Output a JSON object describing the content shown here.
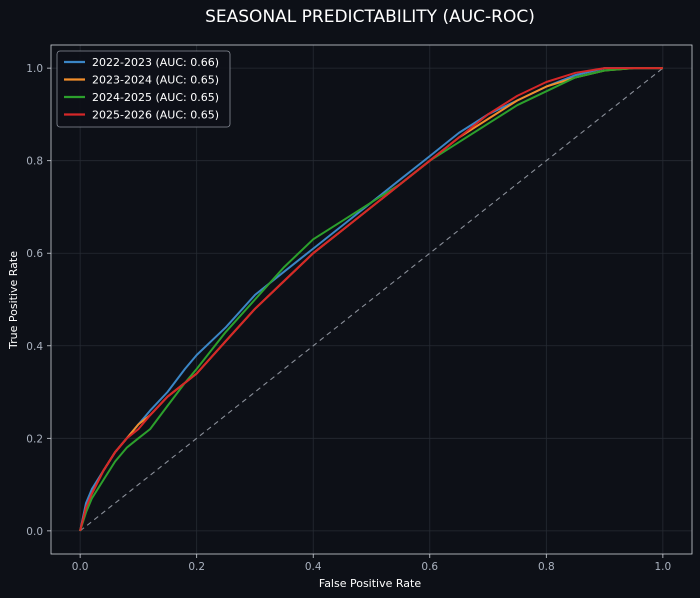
{
  "chart_data": {
    "type": "line",
    "title": "SEASONAL PREDICTABILITY (AUC-ROC)",
    "xlabel": "False Positive Rate",
    "ylabel": "True Positive Rate",
    "xlim": [
      -0.05,
      1.05
    ],
    "ylim": [
      -0.05,
      1.05
    ],
    "xticks": [
      "0.0",
      "0.2",
      "0.4",
      "0.6",
      "0.8",
      "1.0"
    ],
    "yticks": [
      "0.0",
      "0.2",
      "0.4",
      "0.6",
      "0.8",
      "1.0"
    ],
    "grid": true,
    "legend_position": "top-left",
    "background": "#0d1017",
    "reference_line": {
      "x": [
        0,
        1
      ],
      "y": [
        0,
        1
      ],
      "style": "dashed",
      "color": "#8a8f99"
    },
    "series": [
      {
        "name": "2022-2023 (AUC: 0.66)",
        "color": "#3b86c6",
        "x": [
          0,
          0.01,
          0.02,
          0.04,
          0.06,
          0.08,
          0.1,
          0.12,
          0.15,
          0.18,
          0.2,
          0.25,
          0.3,
          0.35,
          0.4,
          0.45,
          0.5,
          0.55,
          0.6,
          0.65,
          0.7,
          0.75,
          0.8,
          0.85,
          0.9,
          0.95,
          1.0
        ],
        "y": [
          0,
          0.06,
          0.09,
          0.13,
          0.17,
          0.2,
          0.23,
          0.26,
          0.3,
          0.35,
          0.38,
          0.44,
          0.51,
          0.56,
          0.61,
          0.66,
          0.71,
          0.76,
          0.81,
          0.86,
          0.9,
          0.93,
          0.96,
          0.985,
          1.0,
          1.0,
          1.0
        ]
      },
      {
        "name": "2023-2024 (AUC: 0.65)",
        "color": "#f28e2b",
        "x": [
          0,
          0.01,
          0.02,
          0.04,
          0.06,
          0.08,
          0.1,
          0.12,
          0.15,
          0.18,
          0.2,
          0.25,
          0.3,
          0.35,
          0.4,
          0.45,
          0.5,
          0.55,
          0.6,
          0.65,
          0.7,
          0.75,
          0.8,
          0.85,
          0.9,
          0.95,
          1.0
        ],
        "y": [
          0,
          0.05,
          0.08,
          0.13,
          0.17,
          0.2,
          0.23,
          0.25,
          0.29,
          0.32,
          0.34,
          0.41,
          0.48,
          0.54,
          0.6,
          0.65,
          0.7,
          0.75,
          0.8,
          0.85,
          0.89,
          0.93,
          0.96,
          0.98,
          0.995,
          1.0,
          1.0
        ]
      },
      {
        "name": "2024-2025 (AUC: 0.65)",
        "color": "#2ca02c",
        "x": [
          0,
          0.01,
          0.02,
          0.04,
          0.06,
          0.08,
          0.1,
          0.12,
          0.15,
          0.18,
          0.2,
          0.25,
          0.3,
          0.35,
          0.4,
          0.45,
          0.5,
          0.55,
          0.6,
          0.65,
          0.7,
          0.75,
          0.8,
          0.85,
          0.9,
          0.95,
          1.0
        ],
        "y": [
          0,
          0.04,
          0.07,
          0.11,
          0.15,
          0.18,
          0.2,
          0.22,
          0.27,
          0.32,
          0.35,
          0.43,
          0.5,
          0.57,
          0.63,
          0.67,
          0.71,
          0.75,
          0.8,
          0.84,
          0.88,
          0.92,
          0.95,
          0.98,
          0.995,
          1.0,
          1.0
        ]
      },
      {
        "name": "2025-2026 (AUC: 0.65)",
        "color": "#d62728",
        "x": [
          0,
          0.01,
          0.02,
          0.04,
          0.06,
          0.08,
          0.1,
          0.12,
          0.15,
          0.18,
          0.2,
          0.25,
          0.3,
          0.35,
          0.4,
          0.45,
          0.5,
          0.55,
          0.6,
          0.65,
          0.7,
          0.75,
          0.8,
          0.85,
          0.9,
          0.95,
          1.0
        ],
        "y": [
          0,
          0.05,
          0.08,
          0.13,
          0.17,
          0.2,
          0.22,
          0.25,
          0.29,
          0.32,
          0.34,
          0.41,
          0.48,
          0.54,
          0.6,
          0.65,
          0.7,
          0.75,
          0.8,
          0.85,
          0.9,
          0.94,
          0.97,
          0.99,
          1.0,
          1.0,
          1.0
        ]
      }
    ]
  }
}
